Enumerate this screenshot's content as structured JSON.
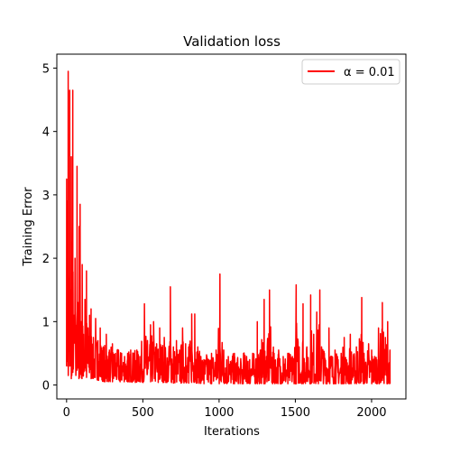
{
  "chart_data": {
    "type": "line",
    "title": "Validation loss",
    "xlabel": "Iterations",
    "ylabel": "Training Error",
    "xlim": [
      -64,
      2225
    ],
    "ylim": [
      -0.22,
      5.22
    ],
    "xticks": [
      0,
      500,
      1000,
      1500,
      2000
    ],
    "yticks": [
      0,
      1,
      2,
      3,
      4,
      5
    ],
    "legend_position": "top-right",
    "grid": false,
    "series": [
      {
        "name": "α = 0.01",
        "color": "#ff0000",
        "peaks": [
          [
            0,
            3.25
          ],
          [
            2,
            1.2
          ],
          [
            5,
            2.9
          ],
          [
            10,
            4.95
          ],
          [
            15,
            0.9
          ],
          [
            20,
            4.65
          ],
          [
            25,
            1.5
          ],
          [
            30,
            3.6
          ],
          [
            35,
            0.6
          ],
          [
            40,
            4.65
          ],
          [
            48,
            1.1
          ],
          [
            55,
            2.0
          ],
          [
            62,
            0.7
          ],
          [
            68,
            3.45
          ],
          [
            75,
            1.3
          ],
          [
            82,
            2.5
          ],
          [
            88,
            2.85
          ],
          [
            95,
            1.0
          ],
          [
            102,
            1.9
          ],
          [
            110,
            0.8
          ],
          [
            120,
            1.35
          ],
          [
            130,
            1.8
          ],
          [
            140,
            0.9
          ],
          [
            150,
            1.1
          ],
          [
            160,
            1.2
          ],
          [
            175,
            0.75
          ],
          [
            190,
            1.05
          ],
          [
            205,
            0.7
          ],
          [
            220,
            0.9
          ],
          [
            240,
            0.6
          ],
          [
            260,
            0.8
          ],
          [
            280,
            0.55
          ],
          [
            300,
            0.65
          ],
          [
            320,
            0.5
          ],
          [
            340,
            0.55
          ],
          [
            360,
            0.5
          ],
          [
            380,
            0.45
          ],
          [
            400,
            0.5
          ],
          [
            420,
            0.55
          ],
          [
            440,
            0.5
          ],
          [
            460,
            0.55
          ],
          [
            480,
            0.45
          ],
          [
            510,
            1.28
          ],
          [
            530,
            0.7
          ],
          [
            550,
            0.95
          ],
          [
            570,
            1.0
          ],
          [
            590,
            0.65
          ],
          [
            610,
            0.9
          ],
          [
            640,
            0.75
          ],
          [
            670,
            0.5
          ],
          [
            680,
            1.55
          ],
          [
            700,
            0.6
          ],
          [
            720,
            0.7
          ],
          [
            740,
            0.55
          ],
          [
            760,
            0.9
          ],
          [
            780,
            0.65
          ],
          [
            800,
            0.6
          ],
          [
            820,
            1.12
          ],
          [
            840,
            1.12
          ],
          [
            860,
            0.6
          ],
          [
            880,
            0.45
          ],
          [
            900,
            0.4
          ],
          [
            920,
            0.45
          ],
          [
            950,
            0.5
          ],
          [
            980,
            0.55
          ],
          [
            1005,
            1.75
          ],
          [
            1030,
            0.55
          ],
          [
            1060,
            0.45
          ],
          [
            1080,
            0.35
          ],
          [
            1100,
            0.5
          ],
          [
            1120,
            0.4
          ],
          [
            1140,
            0.3
          ],
          [
            1160,
            0.5
          ],
          [
            1180,
            0.45
          ],
          [
            1200,
            0.4
          ],
          [
            1220,
            0.5
          ],
          [
            1240,
            0.4
          ],
          [
            1250,
            1.0
          ],
          [
            1270,
            0.55
          ],
          [
            1295,
            1.35
          ],
          [
            1310,
            0.45
          ],
          [
            1330,
            1.5
          ],
          [
            1360,
            0.5
          ],
          [
            1390,
            0.55
          ],
          [
            1420,
            0.45
          ],
          [
            1450,
            0.5
          ],
          [
            1480,
            0.45
          ],
          [
            1505,
            1.58
          ],
          [
            1525,
            0.6
          ],
          [
            1550,
            1.28
          ],
          [
            1575,
            0.6
          ],
          [
            1600,
            1.42
          ],
          [
            1620,
            0.8
          ],
          [
            1640,
            1.15
          ],
          [
            1660,
            1.5
          ],
          [
            1690,
            0.5
          ],
          [
            1720,
            0.9
          ],
          [
            1740,
            0.45
          ],
          [
            1760,
            0.55
          ],
          [
            1780,
            0.4
          ],
          [
            1800,
            0.5
          ],
          [
            1820,
            0.75
          ],
          [
            1840,
            0.35
          ],
          [
            1860,
            0.8
          ],
          [
            1880,
            0.45
          ],
          [
            1900,
            0.6
          ],
          [
            1935,
            1.38
          ],
          [
            1950,
            0.5
          ],
          [
            1980,
            0.65
          ],
          [
            2000,
            0.55
          ],
          [
            2020,
            0.45
          ],
          [
            2045,
            0.9
          ],
          [
            2070,
            1.3
          ],
          [
            2090,
            0.75
          ],
          [
            2105,
            1.0
          ],
          [
            2115,
            0.35
          ],
          [
            2120,
            0.55
          ]
        ],
        "troughs": [
          [
            0,
            0.3
          ],
          [
            10,
            0.15
          ],
          [
            20,
            0.3
          ],
          [
            30,
            0.1
          ],
          [
            40,
            0.2
          ],
          [
            60,
            0.15
          ],
          [
            80,
            0.1
          ],
          [
            100,
            0.1
          ],
          [
            130,
            0.12
          ],
          [
            160,
            0.1
          ],
          [
            200,
            0.08
          ],
          [
            250,
            0.05
          ],
          [
            300,
            0.05
          ],
          [
            350,
            0.05
          ],
          [
            400,
            0.05
          ],
          [
            450,
            0.04
          ],
          [
            500,
            0.04
          ],
          [
            550,
            0.05
          ],
          [
            600,
            0.04
          ],
          [
            650,
            0.04
          ],
          [
            700,
            0.03
          ],
          [
            750,
            0.03
          ],
          [
            800,
            0.03
          ],
          [
            850,
            0.03
          ],
          [
            900,
            0.02
          ],
          [
            950,
            0.02
          ],
          [
            1000,
            0.02
          ],
          [
            1050,
            0.02
          ],
          [
            1100,
            0.02
          ],
          [
            1150,
            0.02
          ],
          [
            1200,
            0.02
          ],
          [
            1250,
            0.02
          ],
          [
            1300,
            0.02
          ],
          [
            1350,
            0.02
          ],
          [
            1400,
            0.02
          ],
          [
            1450,
            0.02
          ],
          [
            1500,
            0.02
          ],
          [
            1550,
            0.02
          ],
          [
            1600,
            0.02
          ],
          [
            1650,
            0.02
          ],
          [
            1700,
            0.02
          ],
          [
            1750,
            0.02
          ],
          [
            1800,
            0.02
          ],
          [
            1850,
            0.02
          ],
          [
            1900,
            0.02
          ],
          [
            1950,
            0.02
          ],
          [
            2000,
            0.02
          ],
          [
            2050,
            0.02
          ],
          [
            2100,
            0.02
          ],
          [
            2120,
            0.02
          ]
        ]
      }
    ]
  }
}
